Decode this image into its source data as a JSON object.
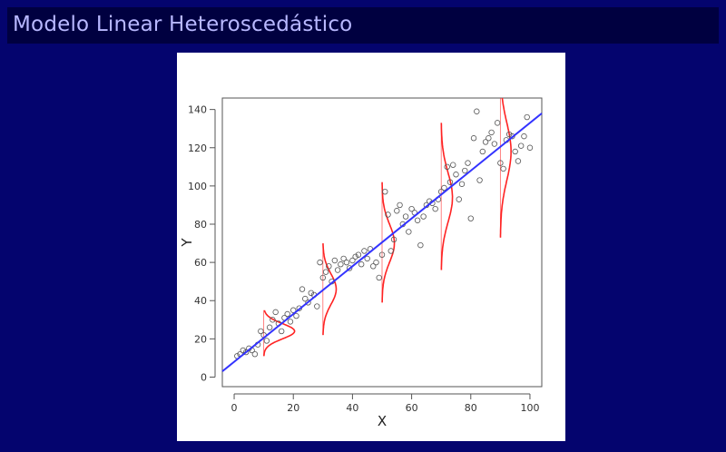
{
  "slide": {
    "title": "Modelo Linear Heteroscedástico"
  },
  "colors": {
    "background": "#000066",
    "title_bar": "#000040",
    "title_text": "#b8b8ff",
    "regression_line": "#3333ff",
    "density_curves": "#ff2222",
    "points": "#555555"
  },
  "chart_data": {
    "type": "scatter",
    "title": "",
    "xlabel": "X",
    "ylabel": "Y",
    "xlim": [
      -4,
      104
    ],
    "ylim": [
      -5,
      146
    ],
    "xticks": [
      0,
      20,
      40,
      60,
      80,
      100
    ],
    "yticks": [
      0,
      20,
      40,
      60,
      80,
      100,
      120,
      140
    ],
    "grid": false,
    "legend": "none",
    "regression_line": {
      "intercept": 8,
      "slope": 1.25,
      "x_range": [
        -4,
        104
      ]
    },
    "density_curves": [
      {
        "x": 10,
        "mean": 24,
        "sd": 4,
        "ymin": 11,
        "ymax": 35
      },
      {
        "x": 30,
        "mean": 46,
        "sd": 8,
        "ymin": 22,
        "ymax": 70
      },
      {
        "x": 50,
        "mean": 70,
        "sd": 10,
        "ymin": 39,
        "ymax": 102
      },
      {
        "x": 70,
        "mean": 94,
        "sd": 13,
        "ymin": 56,
        "ymax": 133
      },
      {
        "x": 90,
        "mean": 118,
        "sd": 15,
        "ymin": 73,
        "ymax": 146
      }
    ],
    "points": [
      [
        1,
        11
      ],
      [
        2,
        12
      ],
      [
        3,
        14
      ],
      [
        4,
        13
      ],
      [
        5,
        15
      ],
      [
        6,
        14
      ],
      [
        7,
        12
      ],
      [
        8,
        17
      ],
      [
        9,
        24
      ],
      [
        10,
        22
      ],
      [
        11,
        19
      ],
      [
        12,
        26
      ],
      [
        13,
        30
      ],
      [
        14,
        34
      ],
      [
        15,
        28
      ],
      [
        16,
        24
      ],
      [
        17,
        31
      ],
      [
        18,
        33
      ],
      [
        19,
        29
      ],
      [
        20,
        35
      ],
      [
        21,
        32
      ],
      [
        22,
        36
      ],
      [
        23,
        46
      ],
      [
        24,
        41
      ],
      [
        25,
        39
      ],
      [
        26,
        44
      ],
      [
        27,
        43
      ],
      [
        28,
        37
      ],
      [
        29,
        60
      ],
      [
        30,
        52
      ],
      [
        31,
        55
      ],
      [
        32,
        58
      ],
      [
        33,
        50
      ],
      [
        34,
        61
      ],
      [
        35,
        56
      ],
      [
        36,
        59
      ],
      [
        37,
        62
      ],
      [
        38,
        60
      ],
      [
        39,
        57
      ],
      [
        40,
        61
      ],
      [
        41,
        63
      ],
      [
        42,
        64
      ],
      [
        43,
        59
      ],
      [
        44,
        66
      ],
      [
        45,
        62
      ],
      [
        46,
        67
      ],
      [
        47,
        58
      ],
      [
        48,
        60
      ],
      [
        49,
        52
      ],
      [
        50,
        64
      ],
      [
        51,
        97
      ],
      [
        52,
        85
      ],
      [
        53,
        66
      ],
      [
        54,
        72
      ],
      [
        55,
        87
      ],
      [
        56,
        90
      ],
      [
        57,
        80
      ],
      [
        58,
        84
      ],
      [
        59,
        76
      ],
      [
        60,
        88
      ],
      [
        61,
        86
      ],
      [
        62,
        82
      ],
      [
        63,
        69
      ],
      [
        64,
        84
      ],
      [
        65,
        90
      ],
      [
        66,
        92
      ],
      [
        67,
        91
      ],
      [
        68,
        88
      ],
      [
        69,
        93
      ],
      [
        70,
        97
      ],
      [
        71,
        99
      ],
      [
        72,
        110
      ],
      [
        73,
        102
      ],
      [
        74,
        111
      ],
      [
        75,
        106
      ],
      [
        76,
        93
      ],
      [
        77,
        101
      ],
      [
        78,
        108
      ],
      [
        79,
        112
      ],
      [
        80,
        83
      ],
      [
        81,
        125
      ],
      [
        82,
        139
      ],
      [
        83,
        103
      ],
      [
        84,
        118
      ],
      [
        85,
        123
      ],
      [
        86,
        125
      ],
      [
        87,
        128
      ],
      [
        88,
        122
      ],
      [
        89,
        133
      ],
      [
        90,
        112
      ],
      [
        91,
        109
      ],
      [
        92,
        124
      ],
      [
        93,
        127
      ],
      [
        94,
        126
      ],
      [
        95,
        118
      ],
      [
        96,
        113
      ],
      [
        97,
        121
      ],
      [
        98,
        126
      ],
      [
        99,
        136
      ],
      [
        100,
        120
      ]
    ]
  }
}
